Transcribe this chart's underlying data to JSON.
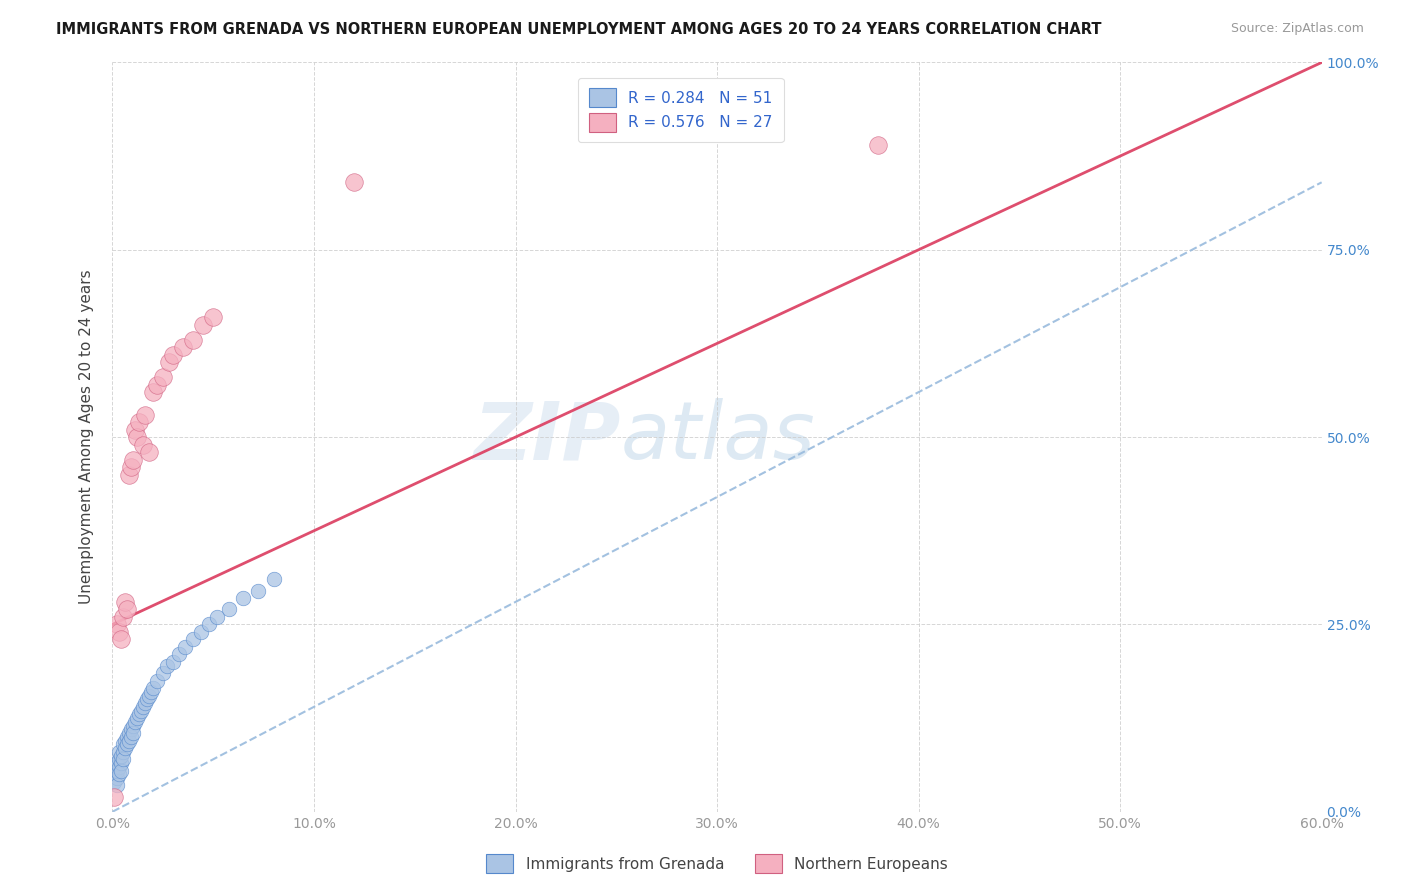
{
  "title": "IMMIGRANTS FROM GRENADA VS NORTHERN EUROPEAN UNEMPLOYMENT AMONG AGES 20 TO 24 YEARS CORRELATION CHART",
  "source": "Source: ZipAtlas.com",
  "legend_label1": "Immigrants from Grenada",
  "legend_label2": "Northern Europeans",
  "ylabel": "Unemployment Among Ages 20 to 24 years",
  "R1": 0.284,
  "N1": 51,
  "R2": 0.576,
  "N2": 27,
  "color_blue": "#aac4e4",
  "color_blue_edge": "#5588cc",
  "color_pink": "#f5b0c0",
  "color_pink_edge": "#d06080",
  "color_trendline_blue": "#99bbdd",
  "color_trendline_pink": "#dd4466",
  "watermark_zip": "ZIP",
  "watermark_atlas": "atlas",
  "xlim": [
    0.0,
    0.6
  ],
  "ylim": [
    0.0,
    1.0
  ],
  "xtick_vals": [
    0.0,
    0.1,
    0.2,
    0.3,
    0.4,
    0.5,
    0.6
  ],
  "xtick_labels": [
    "0.0%",
    "10.0%",
    "20.0%",
    "30.0%",
    "40.0%",
    "50.0%",
    "60.0%"
  ],
  "ytick_vals": [
    0.0,
    0.25,
    0.5,
    0.75,
    1.0
  ],
  "ytick_labels": [
    "0.0%",
    "25.0%",
    "50.0%",
    "75.0%",
    "100.0%"
  ],
  "blue_scatter_x": [
    0.001,
    0.001,
    0.001,
    0.002,
    0.002,
    0.002,
    0.002,
    0.003,
    0.003,
    0.003,
    0.003,
    0.004,
    0.004,
    0.004,
    0.005,
    0.005,
    0.005,
    0.006,
    0.006,
    0.007,
    0.007,
    0.008,
    0.008,
    0.009,
    0.009,
    0.01,
    0.01,
    0.011,
    0.012,
    0.013,
    0.014,
    0.015,
    0.016,
    0.017,
    0.018,
    0.019,
    0.02,
    0.022,
    0.025,
    0.027,
    0.03,
    0.033,
    0.036,
    0.04,
    0.044,
    0.048,
    0.052,
    0.058,
    0.065,
    0.072,
    0.08
  ],
  "blue_scatter_y": [
    0.05,
    0.04,
    0.06,
    0.045,
    0.055,
    0.065,
    0.035,
    0.06,
    0.07,
    0.05,
    0.08,
    0.065,
    0.075,
    0.055,
    0.08,
    0.09,
    0.07,
    0.095,
    0.085,
    0.1,
    0.09,
    0.105,
    0.095,
    0.11,
    0.1,
    0.115,
    0.105,
    0.12,
    0.125,
    0.13,
    0.135,
    0.14,
    0.145,
    0.15,
    0.155,
    0.16,
    0.165,
    0.175,
    0.185,
    0.195,
    0.2,
    0.21,
    0.22,
    0.23,
    0.24,
    0.25,
    0.26,
    0.27,
    0.285,
    0.295,
    0.31
  ],
  "pink_scatter_x": [
    0.001,
    0.002,
    0.003,
    0.004,
    0.005,
    0.006,
    0.007,
    0.008,
    0.009,
    0.01,
    0.011,
    0.012,
    0.013,
    0.015,
    0.016,
    0.018,
    0.02,
    0.022,
    0.025,
    0.028,
    0.03,
    0.035,
    0.04,
    0.045,
    0.05,
    0.38,
    0.12
  ],
  "pink_scatter_y": [
    0.02,
    0.25,
    0.24,
    0.23,
    0.26,
    0.28,
    0.27,
    0.45,
    0.46,
    0.47,
    0.51,
    0.5,
    0.52,
    0.49,
    0.53,
    0.48,
    0.56,
    0.57,
    0.58,
    0.6,
    0.61,
    0.62,
    0.63,
    0.65,
    0.66,
    0.89,
    0.84
  ],
  "trendline_blue_x0": 0.0,
  "trendline_blue_y0": 0.0,
  "trendline_blue_x1": 0.6,
  "trendline_blue_y1": 0.84,
  "trendline_pink_x0": 0.0,
  "trendline_pink_y0": 0.25,
  "trendline_pink_x1": 0.6,
  "trendline_pink_y1": 1.0
}
